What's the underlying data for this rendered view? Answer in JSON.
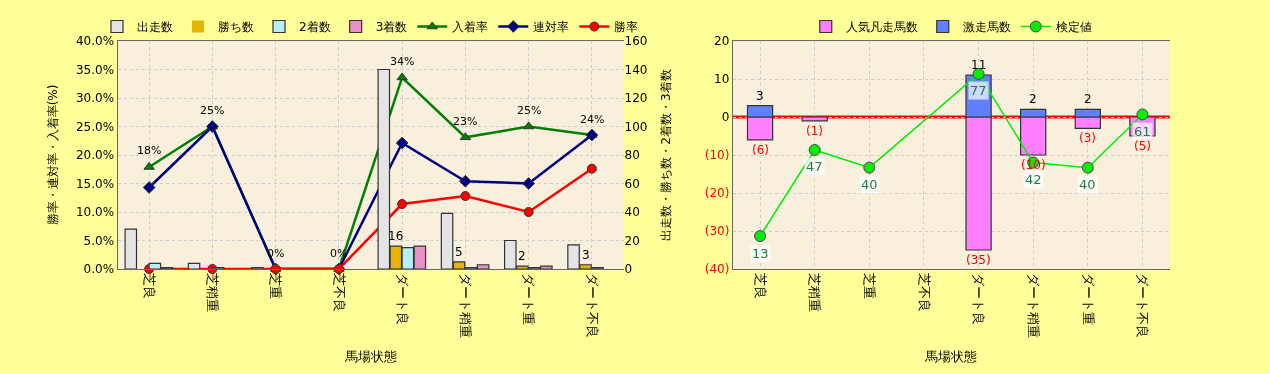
{
  "chart_data": [
    {
      "type": "bar",
      "xlabel": "馬場状態",
      "ylabel": "勝率・連対率・入着率(%)",
      "y2label": "出走数・勝ち数・2着数・3着数",
      "categories": [
        "芝良",
        "芝稍重",
        "芝重",
        "芝不良",
        "ダート良",
        "ダート稍重",
        "ダート重",
        "ダート不良"
      ],
      "series": [
        {
          "name": "出走数",
          "axis": "y2",
          "color": "#e4e4e4",
          "values": [
            28,
            4,
            1,
            0,
            140,
            39,
            20,
            17
          ]
        },
        {
          "name": "勝ち数",
          "axis": "y2",
          "color": "#e6b400",
          "values": [
            0,
            0,
            0,
            0,
            16,
            5,
            2,
            3
          ],
          "value_labels": [
            null,
            null,
            null,
            null,
            "16",
            "5",
            "2",
            "3"
          ]
        },
        {
          "name": "2着数",
          "axis": "y2",
          "color": "#b4f0f4",
          "values": [
            4,
            1,
            0,
            0,
            15,
            1,
            1,
            1
          ]
        },
        {
          "name": "3着数",
          "axis": "y2",
          "color": "#e890c8",
          "values": [
            1,
            0,
            0,
            0,
            16,
            3,
            2,
            0
          ]
        },
        {
          "name": "入着率",
          "type": "line",
          "color": "#008000",
          "marker": "triangle",
          "values": [
            17.9,
            25,
            0,
            0,
            33.6,
            23.1,
            25,
            23.5
          ],
          "value_labels": [
            "18%",
            "25%",
            "0%",
            "0%",
            "34%",
            "23%",
            "25%",
            "24%"
          ]
        },
        {
          "name": "連対率",
          "type": "line",
          "color": "#000080",
          "marker": "diamond",
          "values": [
            14.3,
            25,
            0,
            0,
            22.1,
            15.4,
            15.0,
            23.5
          ]
        },
        {
          "name": "勝率",
          "type": "line",
          "color": "#ff0000",
          "marker": "circle",
          "values": [
            0,
            0,
            0,
            0,
            11.4,
            12.8,
            10.0,
            17.6
          ]
        }
      ],
      "ylim": [
        0,
        40
      ],
      "yticks": [
        {
          "value": 0,
          "label": "0.0%"
        },
        {
          "value": 5,
          "label": "5.0%"
        },
        {
          "value": 10,
          "label": "10.0%"
        },
        {
          "value": 15,
          "label": "15.0%"
        },
        {
          "value": 20,
          "label": "20.0%"
        },
        {
          "value": 25,
          "label": "25.0%"
        },
        {
          "value": 30,
          "label": "30.0%"
        },
        {
          "value": 35,
          "label": "35.0%"
        },
        {
          "value": 40,
          "label": "40.0%"
        }
      ],
      "y2lim": [
        0,
        160
      ],
      "y2ticks": [
        0,
        20,
        40,
        60,
        80,
        100,
        120,
        140,
        160
      ],
      "grid": true,
      "legend": "top"
    },
    {
      "type": "bar",
      "stacked": true,
      "xlabel": "馬場状態",
      "categories": [
        "芝良",
        "芝稍重",
        "芝重",
        "芝不良",
        "ダート良",
        "ダート稍重",
        "ダート重",
        "ダート不良"
      ],
      "series": [
        {
          "name": "人気凡走馬数",
          "color": "#ff80ff",
          "values": [
            -6,
            -1,
            null,
            null,
            -35,
            -10,
            -3,
            -5
          ],
          "value_labels": [
            "(6)",
            "(1)",
            null,
            null,
            "(35)",
            "(10)",
            "(3)",
            "(5)"
          ]
        },
        {
          "name": "激走馬数",
          "color": "#6080ff",
          "values": [
            3,
            null,
            null,
            null,
            11,
            2,
            2,
            null
          ],
          "value_labels": [
            "3",
            null,
            null,
            null,
            "11",
            "2",
            "2",
            null
          ]
        },
        {
          "name": "検定値",
          "type": "line",
          "axis": "y2",
          "color": "#00ee00",
          "marker": "circle",
          "values": [
            13,
            47,
            40,
            null,
            77,
            42,
            40,
            61
          ],
          "value_labels": [
            "13",
            "47",
            "40",
            null,
            "77",
            "42",
            "40",
            "61"
          ]
        }
      ],
      "ylim": [
        -40,
        20
      ],
      "yticks": [
        {
          "value": -40,
          "label": "(40)"
        },
        {
          "value": -30,
          "label": "(30)"
        },
        {
          "value": -20,
          "label": "(20)"
        },
        {
          "value": -10,
          "label": "(10)"
        },
        0,
        10,
        20
      ],
      "y2lim": [
        0,
        90
      ],
      "ref_lines": [
        {
          "axis": "y",
          "value": 0,
          "color": "#ff0000"
        }
      ],
      "grid": true,
      "legend": "top"
    }
  ]
}
